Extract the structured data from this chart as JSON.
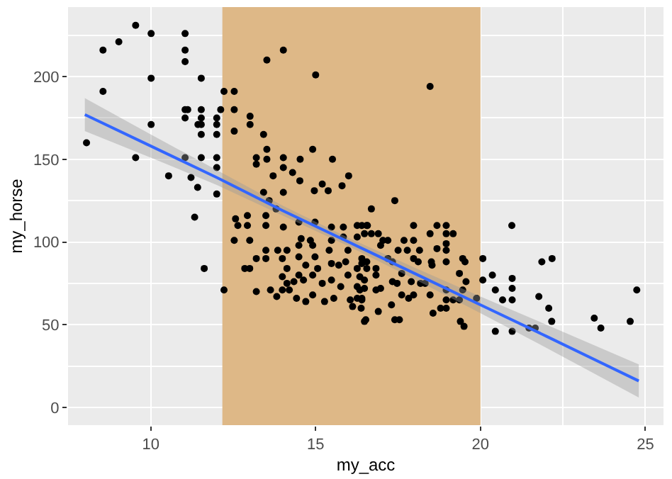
{
  "chart_data": {
    "type": "scatter",
    "xlabel": "my_acc",
    "ylabel": "my_horse",
    "xlim": [
      7.49,
      25.55
    ],
    "ylim": [
      -10.7,
      242
    ],
    "xticks": [
      10,
      15,
      20,
      25
    ],
    "yticks": [
      0,
      50,
      100,
      150,
      200
    ],
    "grid": true,
    "marker": "circle",
    "bands": [
      {
        "axis": "x",
        "from": 12.17,
        "to": 20,
        "color": "#deb887"
      }
    ],
    "series": [
      {
        "color": "#000000",
        "x": [
          9.54,
          10.01,
          11.04,
          8.55,
          9.03,
          11.04,
          11.04,
          10.01,
          11.53,
          8.55,
          10.01,
          8.05,
          9.54,
          10.54,
          11.04,
          11.53,
          11.22,
          11.42,
          11.33,
          11.62,
          12.22,
          11.04,
          11.12,
          11.53,
          11.04,
          11.53,
          11.43,
          11.53,
          11.53,
          12.0,
          12.0,
          12.0,
          12.12,
          12.22,
          12.53,
          12.53,
          12.53,
          12.0,
          12.0,
          12.0,
          13.52,
          14.02,
          15.0,
          13.01,
          13.01,
          13.42,
          13.52,
          13.52,
          13.2,
          13.2,
          14.02,
          14.02,
          14.53,
          14.91,
          15.51,
          13.71,
          14.3,
          14.52,
          15.2,
          16.0,
          14.96,
          15.38,
          15.8,
          13.42,
          13.59,
          14.02,
          13.8,
          12.57,
          12.64,
          12.93,
          12.93,
          13.49,
          13.49,
          14.02,
          14.49,
          14.98,
          15.48,
          15.84,
          16.26,
          16.55,
          14.56,
          14.84,
          15.48,
          15.84,
          16.26,
          12.53,
          13.0,
          13.85,
          14.13,
          14.49,
          14.91,
          15.41,
          15.98,
          13.49,
          13.49,
          13.99,
          14.49,
          14.98,
          15.48,
          15.91,
          16.4,
          12.85,
          13.0,
          13.2,
          14.13,
          14.7,
          15.06,
          15.7,
          16.26,
          13.99,
          14.49,
          14.91,
          15.48,
          15.98,
          14.13,
          14.34,
          14.63,
          15.2,
          15.76,
          16.26,
          13.2,
          13.63,
          13.99,
          14.2,
          14.42,
          14.7,
          14.91,
          15.27,
          15.55,
          16.05,
          16.26,
          16.4,
          16.12,
          16.52,
          13.82,
          18.47,
          17.4,
          16.69,
          16.4,
          16.57,
          17.97,
          18.68,
          18.96,
          16.48,
          16.69,
          16.9,
          18.47,
          18.96,
          19.17,
          17.04,
          17.19,
          17.68,
          17.97,
          18.96,
          18.96,
          17.5,
          17.78,
          18.15,
          16.97,
          18.68,
          16.4,
          16.55,
          17.19,
          17.33,
          17.97,
          18.11,
          18.51,
          19.46,
          19.53,
          20.07,
          18.96,
          16.55,
          16.83,
          17.61,
          18.53,
          16.34,
          16.48,
          16.83,
          17.33,
          17.47,
          17.9,
          18.18,
          18.32,
          19.36,
          19.56,
          20.07,
          20.36,
          16.34,
          16.48,
          16.83,
          16.97,
          17.61,
          17.82,
          17.97,
          18.47,
          18.96,
          18.96,
          19.17,
          19.36,
          19.46,
          19.88,
          16.4,
          16.38,
          16.9,
          17.3,
          17.4,
          17.54,
          16.48,
          18.56,
          18.79,
          18.96,
          19.39,
          19.5,
          20.45,
          20.45,
          20.95,
          20.67,
          20.96,
          20.96,
          20.96,
          20.96,
          21.47,
          21.66,
          21.77,
          21.86,
          22.17,
          22.07,
          22.16,
          23.45,
          23.65,
          24.54,
          24.74
        ],
        "values": [
          231,
          226,
          226,
          216,
          221,
          216,
          209,
          199,
          199,
          191,
          171,
          160,
          151,
          140,
          151,
          151,
          139,
          133,
          115,
          84,
          71,
          180,
          180,
          180,
          175,
          175,
          171,
          171,
          165,
          175,
          171,
          165,
          180,
          191,
          191,
          180,
          167,
          151,
          145,
          129,
          210,
          216,
          201,
          176,
          171,
          165,
          156,
          150,
          151,
          147,
          151,
          145,
          150,
          156,
          150,
          140,
          142,
          137,
          135,
          140,
          131,
          131,
          134,
          130,
          125,
          130,
          120,
          114,
          110,
          116,
          110,
          116,
          110,
          109,
          112,
          112,
          109,
          109,
          110,
          110,
          102,
          101,
          101,
          103,
          103,
          101,
          101,
          95,
          95,
          98,
          98,
          95,
          95,
          95,
          90,
          90,
          91,
          91,
          87,
          88,
          87,
          84,
          84,
          90,
          84,
          86,
          84,
          86,
          84,
          79,
          80,
          80,
          77,
          80,
          75,
          76,
          77,
          75,
          73,
          73,
          70,
          71,
          71,
          71,
          66,
          64,
          68,
          64,
          66,
          65,
          66,
          65,
          61,
          53,
          67,
          194,
          125,
          120,
          110,
          110,
          110,
          110,
          110,
          105,
          105,
          105,
          105,
          105,
          105,
          101,
          101,
          101,
          101,
          99,
          95,
          95,
          95,
          95,
          98,
          96,
          90,
          88,
          90,
          88,
          90,
          88,
          88,
          90,
          88,
          90,
          88,
          84,
          84,
          81,
          86,
          79,
          77,
          80,
          76,
          75,
          76,
          75,
          75,
          81,
          76,
          77,
          80,
          71,
          72,
          71,
          72,
          68,
          66,
          68,
          68,
          71,
          65,
          65,
          65,
          71,
          66,
          66,
          60,
          58,
          62,
          53,
          53,
          52,
          57,
          60,
          60,
          52,
          49,
          71,
          46,
          110,
          65,
          78,
          72,
          65,
          46,
          48,
          48,
          67,
          88,
          90,
          60,
          52,
          54,
          48,
          52,
          71
        ]
      },
      {
        "type": "line",
        "marker": "none",
        "color": "#3366ff",
        "x": [
          8,
          10,
          12,
          14,
          16,
          18,
          20,
          22,
          24.8
        ],
        "values": [
          177,
          158,
          139,
          119,
          100,
          81,
          62,
          43,
          16
        ],
        "lower": [
          167,
          151,
          134.5,
          116,
          97.5,
          77.5,
          57,
          36,
          6
        ],
        "upper": [
          187,
          165,
          143.5,
          122,
          102.5,
          84.5,
          67,
          50,
          26
        ]
      }
    ]
  }
}
